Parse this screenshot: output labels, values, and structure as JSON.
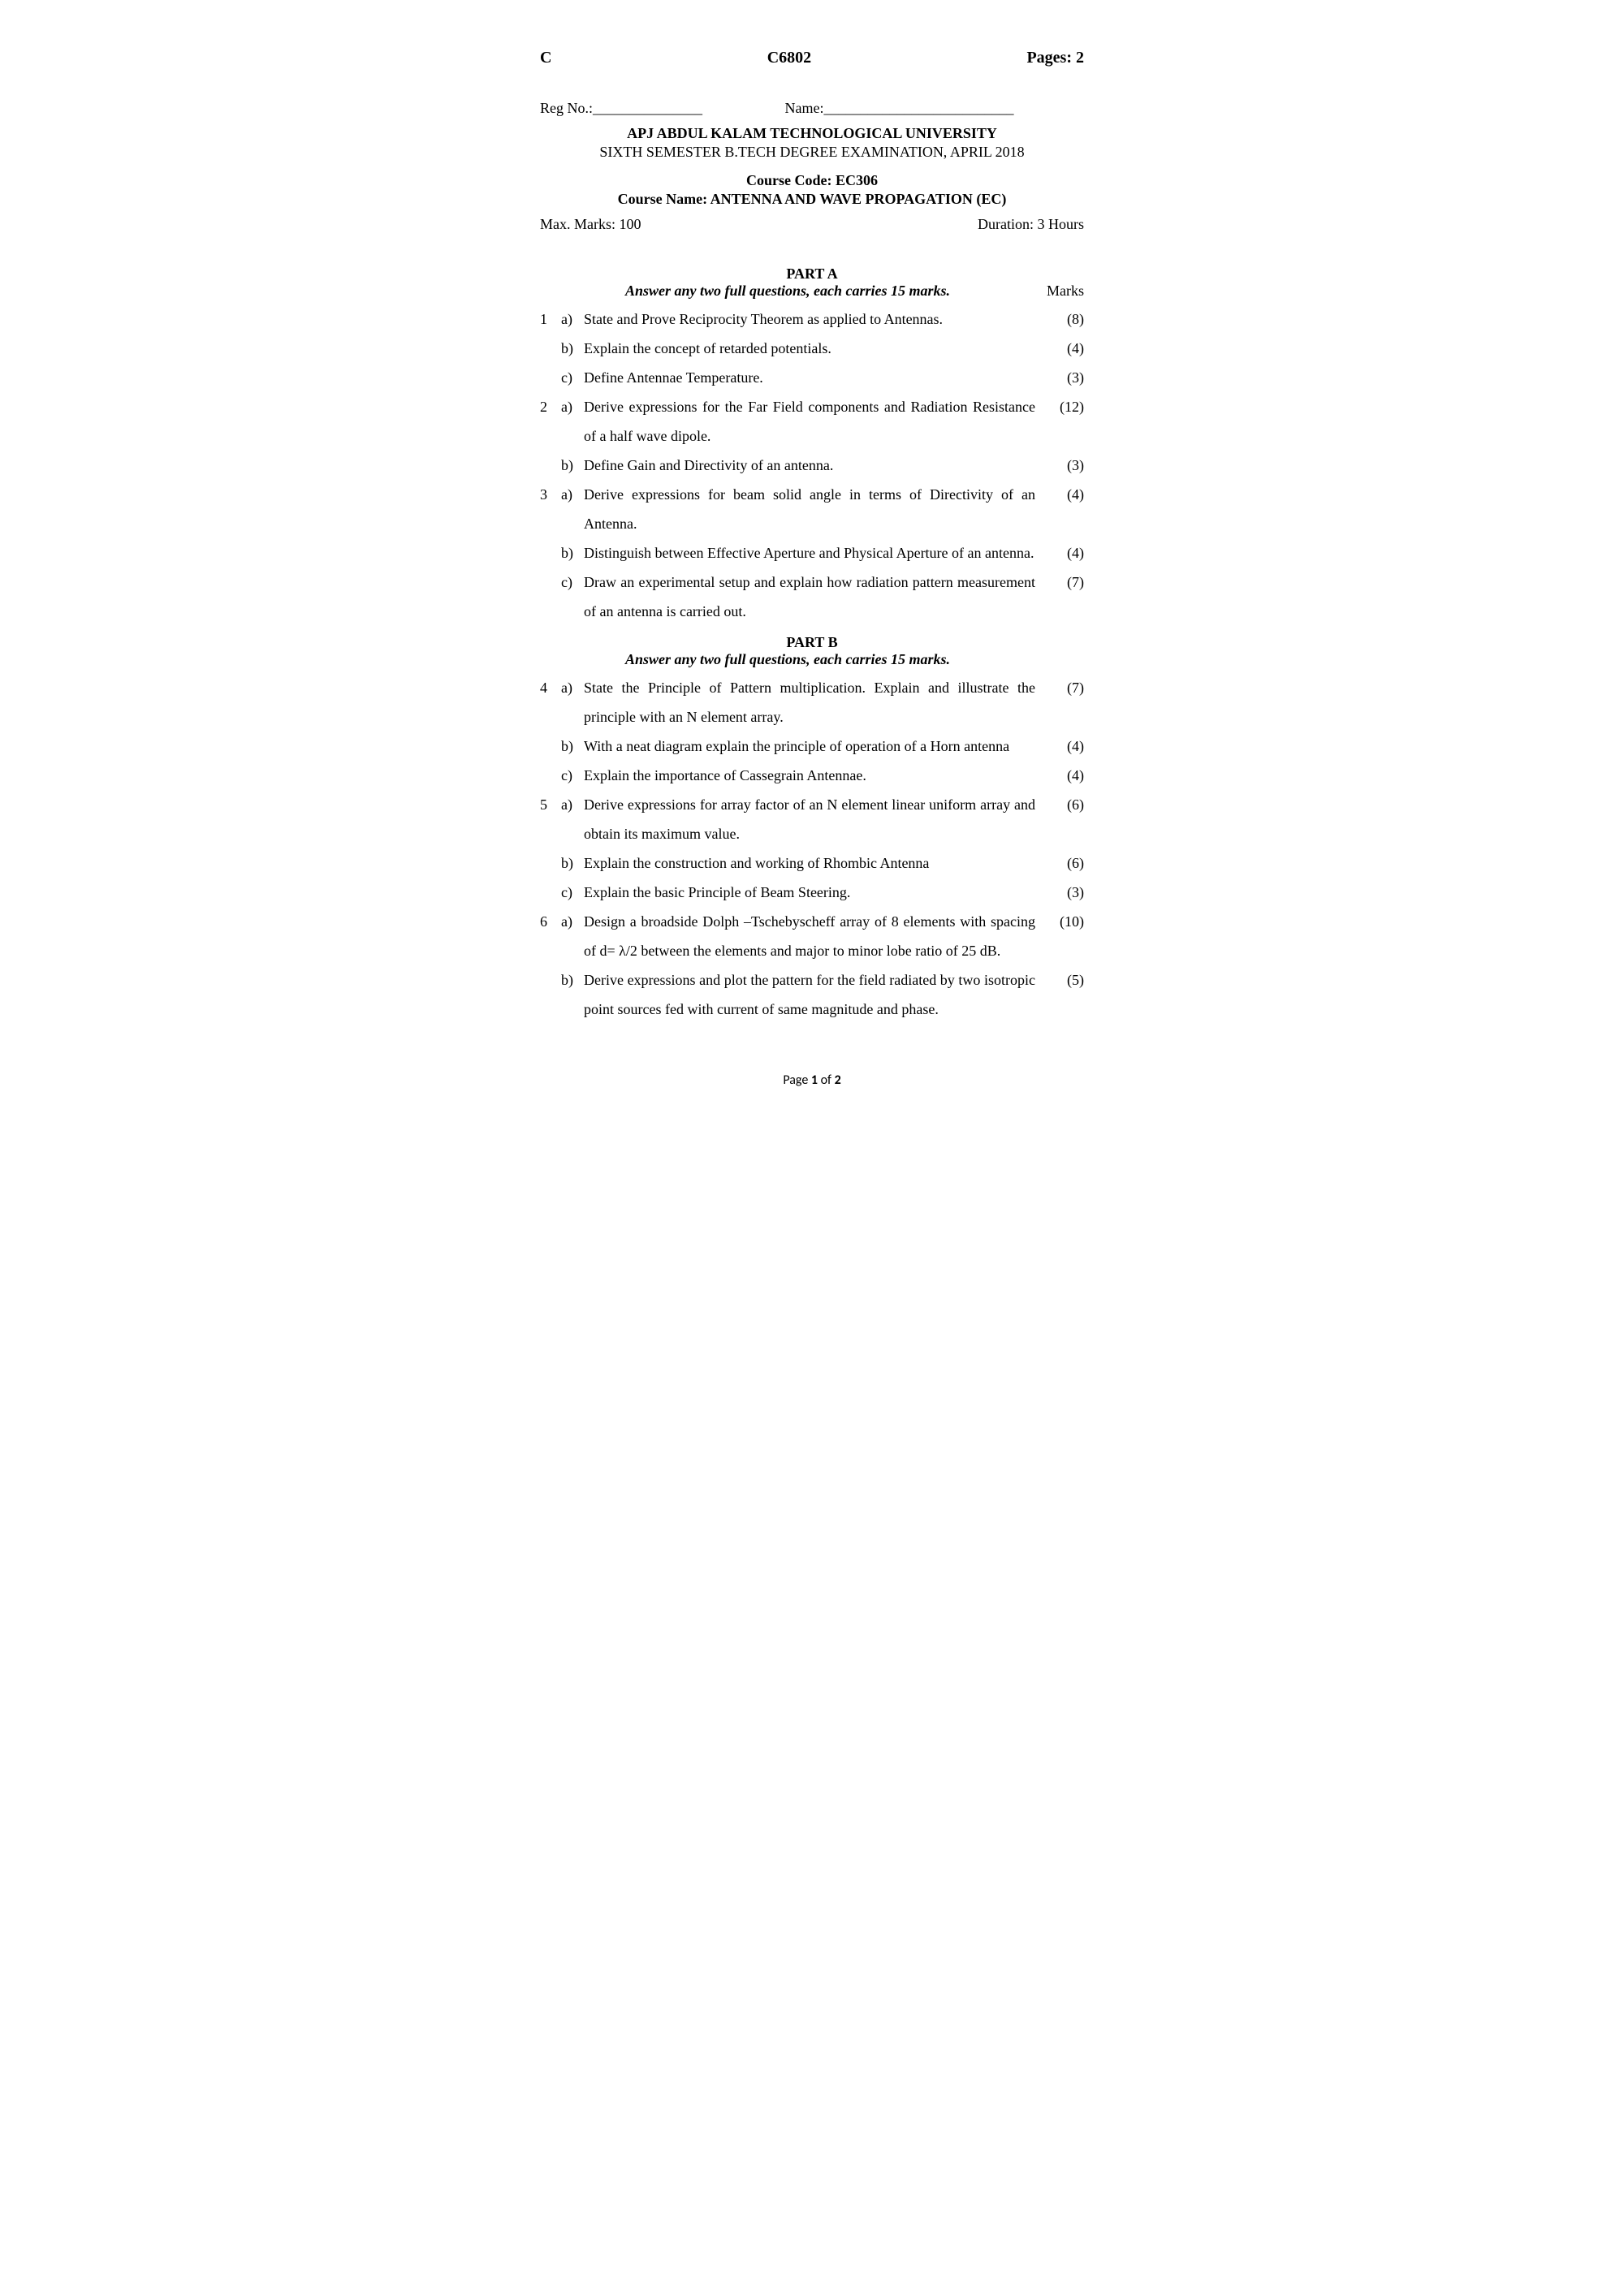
{
  "header": {
    "left": "C",
    "center": "C6802",
    "right": "Pages: 2"
  },
  "reg_line": {
    "reg": "Reg No.:_______________",
    "name": "Name:__________________________"
  },
  "title": {
    "university": "APJ ABDUL KALAM TECHNOLOGICAL UNIVERSITY",
    "exam": "SIXTH SEMESTER B.TECH DEGREE EXAMINATION, APRIL 2018",
    "course_code": "Course Code: EC306",
    "course_name": "Course Name: ANTENNA AND WAVE PROPAGATION (EC)"
  },
  "meta": {
    "max_marks": "Max. Marks: 100",
    "duration": "Duration: 3 Hours"
  },
  "marks_label": "Marks",
  "parts": [
    {
      "heading": "PART A",
      "instruction": "Answer any two full questions, each carries 15 marks.",
      "show_marks_label": true,
      "questions": [
        {
          "num": "1",
          "sub": "a)",
          "text": "State and Prove Reciprocity Theorem as applied to Antennas.",
          "marks": "(8)"
        },
        {
          "num": "",
          "sub": "b)",
          "text": "Explain the concept of retarded potentials.",
          "marks": "(4)"
        },
        {
          "num": "",
          "sub": "c)",
          "text": "Define Antennae Temperature.",
          "marks": "(3)"
        },
        {
          "num": "2",
          "sub": "a)",
          "text": "Derive expressions for the Far Field components and Radiation Resistance of a half wave dipole.",
          "marks": "(12)"
        },
        {
          "num": "",
          "sub": "b)",
          "text": "Define Gain and Directivity of an antenna.",
          "marks": "(3)"
        },
        {
          "num": "3",
          "sub": "a)",
          "text": "Derive expressions for beam solid angle in terms of Directivity of an Antenna.",
          "marks": "(4)"
        },
        {
          "num": "",
          "sub": "b)",
          "text": "Distinguish between Effective Aperture and Physical Aperture of an antenna.",
          "marks": "(4)"
        },
        {
          "num": "",
          "sub": "c)",
          "text": "Draw an experimental setup and explain how radiation pattern measurement of an antenna is carried out.",
          "marks": "(7)"
        }
      ]
    },
    {
      "heading": "PART B",
      "instruction": "Answer any two full questions, each carries 15 marks.",
      "show_marks_label": false,
      "questions": [
        {
          "num": "4",
          "sub": "a)",
          "text": "State the Principle of Pattern multiplication. Explain and illustrate the principle with an N element array.",
          "marks": "(7)"
        },
        {
          "num": "",
          "sub": "b)",
          "text": "With a neat diagram explain the principle of operation of a Horn antenna",
          "marks": "(4)"
        },
        {
          "num": "",
          "sub": "c)",
          "text": "Explain the importance of Cassegrain Antennae.",
          "marks": "(4)"
        },
        {
          "num": "5",
          "sub": "a)",
          "text": "Derive expressions for array factor of an N element linear uniform array and obtain its maximum value.",
          "marks": "(6)"
        },
        {
          "num": "",
          "sub": "b)",
          "text": "Explain the construction and working of Rhombic Antenna",
          "marks": "(6)"
        },
        {
          "num": "",
          "sub": "c)",
          "text": "Explain the basic Principle of Beam Steering.",
          "marks": "(3)"
        },
        {
          "num": "6",
          "sub": "a)",
          "text": "Design a broadside Dolph –Tschebyscheff array of 8 elements with spacing of  d= λ/2 between the elements and major to minor lobe ratio of 25 dB.",
          "marks": "(10)"
        },
        {
          "num": "",
          "sub": "b)",
          "text": "Derive expressions and plot the pattern for the field radiated by two isotropic point sources fed with current of same magnitude and phase.",
          "marks": "(5)"
        }
      ]
    }
  ],
  "footer": {
    "prefix": "Page ",
    "current": "1",
    "sep": " of ",
    "total": "2"
  }
}
